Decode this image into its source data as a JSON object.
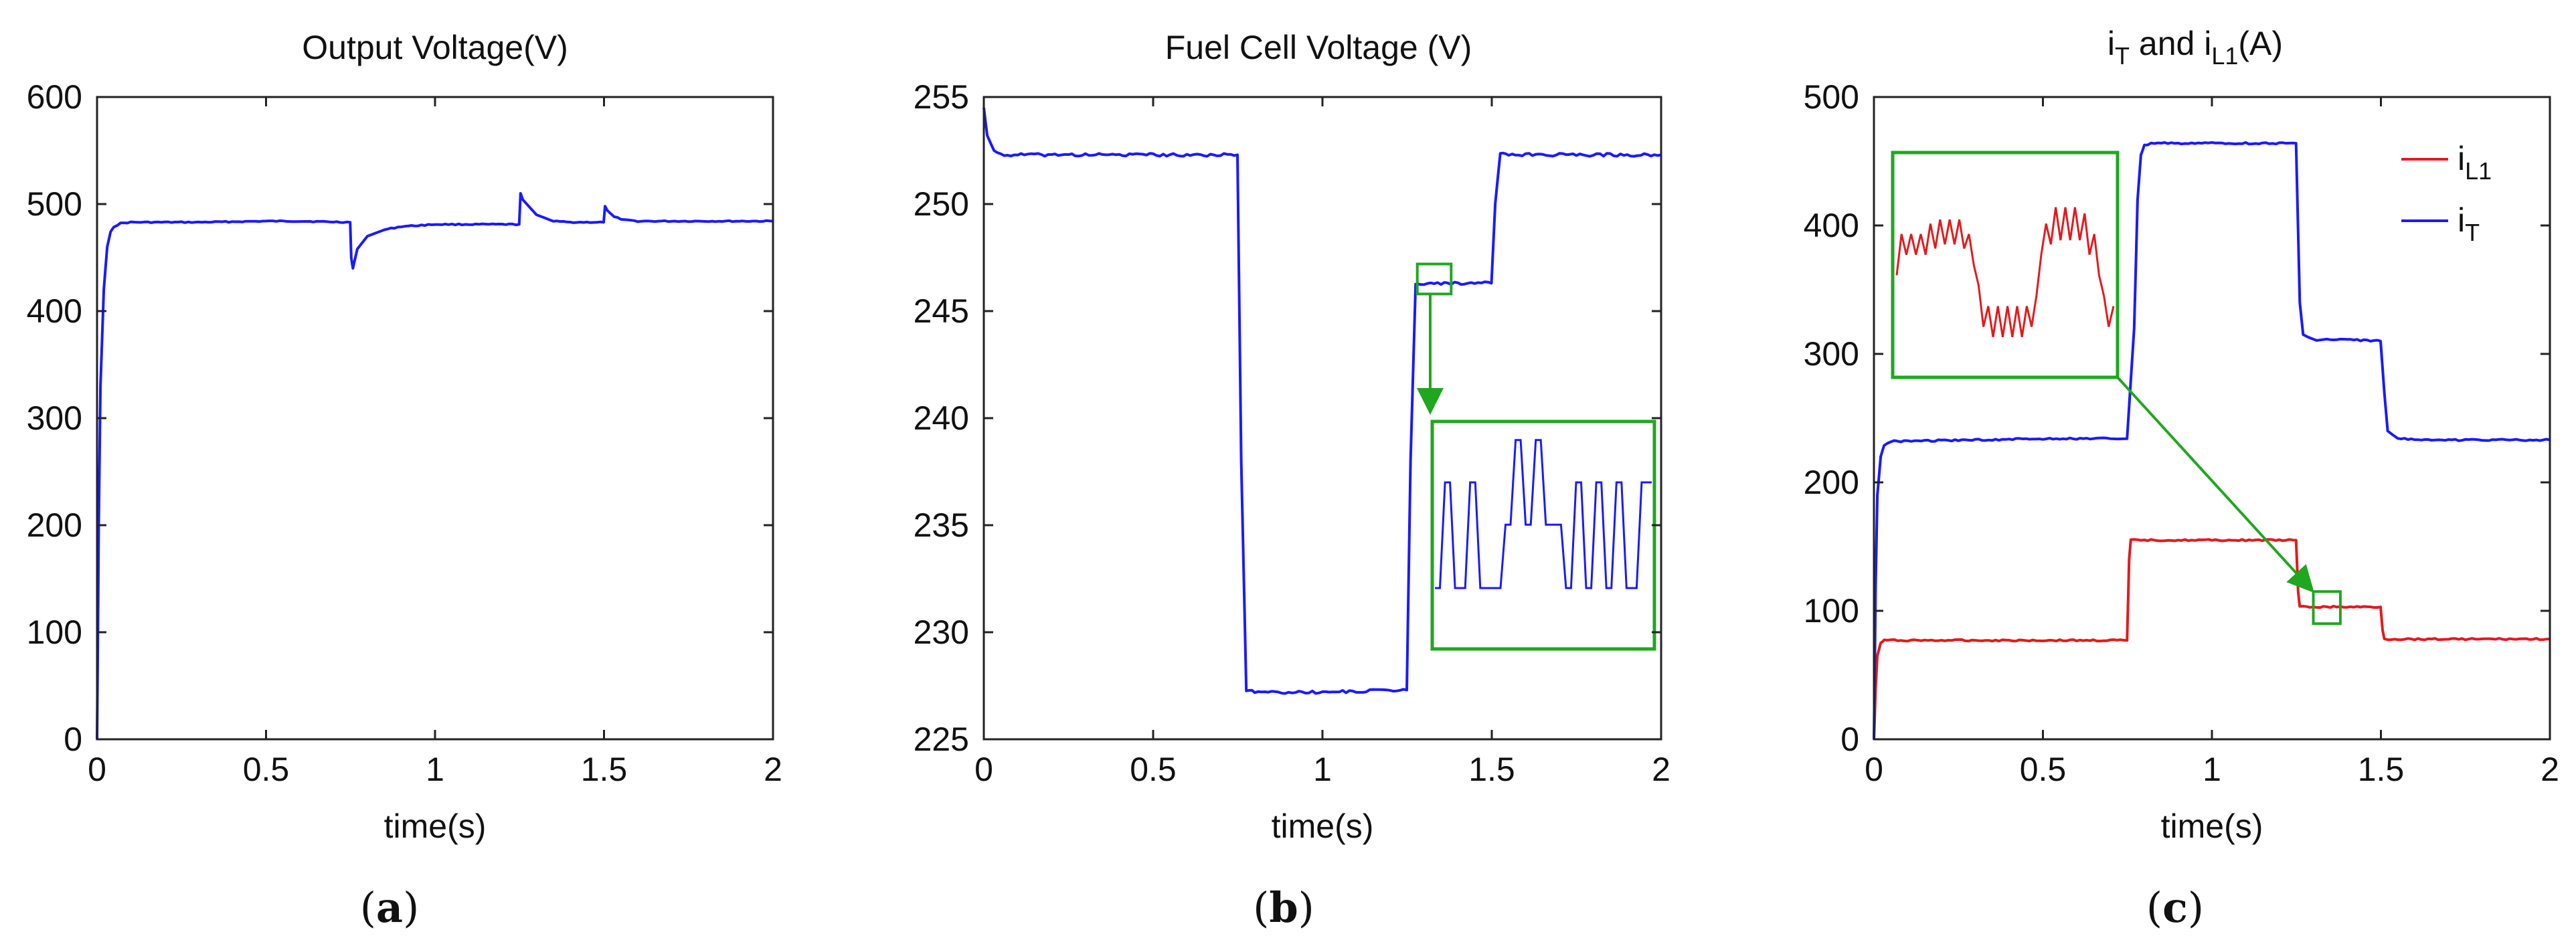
{
  "colors": {
    "blue": "#1a1aff",
    "red": "#e41a1c",
    "green": "#1fa71f",
    "axis": "#222222"
  },
  "chart_data": [
    {
      "id": "a",
      "type": "line",
      "title": "Output Voltage(V)",
      "xlabel": "time(s)",
      "ylabel": "",
      "panel_label": {
        "open": "(",
        "letter": "a",
        "close": ")"
      },
      "xlim": [
        0,
        2
      ],
      "ylim": [
        0,
        600
      ],
      "xticks": [
        0,
        0.5,
        1,
        1.5,
        2
      ],
      "xtick_labels": [
        "0",
        "0.5",
        "1",
        "1.5",
        "2"
      ],
      "yticks": [
        0,
        100,
        200,
        300,
        400,
        500,
        600
      ],
      "ytick_labels": [
        "0",
        "100",
        "200",
        "300",
        "400",
        "500",
        "600"
      ],
      "series": [
        {
          "name": "Output Voltage",
          "color": "#1a1aff",
          "x": [
            0,
            0.005,
            0.01,
            0.02,
            0.03,
            0.04,
            0.05,
            0.07,
            0.1,
            0.3,
            0.5,
            0.6,
            0.749,
            0.752,
            0.757,
            0.77,
            0.8,
            0.85,
            0.9,
            1.0,
            1.1,
            1.249,
            1.253,
            1.26,
            1.28,
            1.3,
            1.35,
            1.4,
            1.499,
            1.503,
            1.51,
            1.53,
            1.56,
            1.6,
            1.8,
            2.0
          ],
          "y": [
            0,
            200,
            330,
            420,
            460,
            474,
            479,
            482,
            483,
            483,
            484,
            484,
            483,
            450,
            440,
            458,
            470,
            476,
            479,
            481,
            481,
            481,
            510,
            504,
            497,
            490,
            484,
            483,
            483,
            498,
            494,
            488,
            485,
            484,
            484,
            484
          ]
        }
      ]
    },
    {
      "id": "b",
      "type": "line",
      "title": "Fuel Cell Voltage (V)",
      "xlabel": "time(s)",
      "ylabel": "",
      "panel_label": {
        "open": "(",
        "letter": "b",
        "close": ")"
      },
      "xlim": [
        0,
        2
      ],
      "ylim": [
        225,
        255
      ],
      "xticks": [
        0,
        0.5,
        1,
        1.5,
        2
      ],
      "xtick_labels": [
        "0",
        "0.5",
        "1",
        "1.5",
        "2"
      ],
      "yticks": [
        225,
        230,
        235,
        240,
        245,
        250,
        255
      ],
      "ytick_labels": [
        "225",
        "230",
        "235",
        "240",
        "245",
        "250",
        "255"
      ],
      "series": [
        {
          "name": "Fuel Cell Voltage",
          "color": "#1a1aff",
          "x": [
            0,
            0.01,
            0.03,
            0.05,
            0.3,
            0.5,
            0.749,
            0.76,
            0.775,
            0.8,
            1.0,
            1.249,
            1.26,
            1.275,
            1.3,
            1.4,
            1.499,
            1.51,
            1.525,
            1.55,
            1.8,
            2.0
          ],
          "y": [
            254.5,
            253.2,
            252.5,
            252.3,
            252.3,
            252.3,
            252.3,
            238,
            227.3,
            227.2,
            227.2,
            227.3,
            238,
            246.3,
            246.3,
            246.3,
            246.3,
            250,
            252.4,
            252.3,
            252.3,
            252.3
          ]
        }
      ],
      "zoom_region": {
        "x": [
          1.28,
          1.38
        ],
        "y": [
          245.8,
          247.2
        ]
      },
      "inset_pattern": [
        0.25,
        0.25,
        0.75,
        0.75,
        0.25,
        0.25,
        0.25,
        0.75,
        0.75,
        0.25,
        0.25,
        0.25,
        0.25,
        0.25,
        0.55,
        0.55,
        0.95,
        0.95,
        0.55,
        0.55,
        0.95,
        0.95,
        0.55,
        0.55,
        0.55,
        0.55,
        0.25,
        0.25,
        0.75,
        0.75,
        0.25,
        0.25,
        0.75,
        0.75,
        0.25,
        0.25,
        0.75,
        0.75,
        0.25,
        0.25,
        0.25,
        0.75,
        0.75,
        0.75
      ]
    },
    {
      "id": "c",
      "type": "line",
      "title": {
        "i1": "i",
        "sub1": "T",
        "mid": " and ",
        "i2": "i",
        "sub2": "L1",
        "unit": "(A)"
      },
      "xlabel": "time(s)",
      "ylabel": "",
      "panel_label": {
        "open": "(",
        "letter": "c",
        "close": ")"
      },
      "xlim": [
        0,
        2
      ],
      "ylim": [
        0,
        500
      ],
      "xticks": [
        0,
        0.5,
        1,
        1.5,
        2
      ],
      "xtick_labels": [
        "0",
        "0.5",
        "1",
        "1.5",
        "2"
      ],
      "yticks": [
        0,
        100,
        200,
        300,
        400,
        500
      ],
      "ytick_labels": [
        "0",
        "100",
        "200",
        "300",
        "400",
        "500"
      ],
      "legend": {
        "position": "top-right",
        "entries": [
          {
            "base": "i",
            "sub": "L1",
            "color": "#e41a1c"
          },
          {
            "base": "i",
            "sub": "T",
            "color": "#1a1aff"
          }
        ]
      },
      "series": [
        {
          "name": "iL1",
          "color": "#e41a1c",
          "x": [
            0,
            0.005,
            0.01,
            0.02,
            0.03,
            0.05,
            0.3,
            0.5,
            0.749,
            0.755,
            0.76,
            1.0,
            1.249,
            1.255,
            1.26,
            1.4,
            1.499,
            1.505,
            1.51,
            1.7,
            2.0
          ],
          "y": [
            0,
            40,
            65,
            75,
            77,
            77,
            77,
            77,
            77,
            140,
            155,
            155,
            155,
            115,
            103,
            103,
            103,
            85,
            78,
            78,
            78
          ]
        },
        {
          "name": "iT",
          "color": "#1a1aff",
          "x": [
            0,
            0.005,
            0.01,
            0.02,
            0.03,
            0.05,
            0.3,
            0.5,
            0.749,
            0.77,
            0.78,
            0.79,
            0.8,
            0.82,
            1.0,
            1.249,
            1.26,
            1.27,
            1.3,
            1.4,
            1.499,
            1.51,
            1.52,
            1.55,
            1.7,
            2.0
          ],
          "y": [
            0,
            120,
            190,
            220,
            229,
            232,
            233,
            234,
            234,
            320,
            420,
            455,
            462,
            464,
            464,
            464,
            340,
            315,
            311,
            311,
            310,
            270,
            240,
            234,
            233,
            233
          ]
        }
      ],
      "zoom_region": {
        "x": [
          1.3,
          1.38
        ],
        "y": [
          90,
          115
        ]
      },
      "inset_pattern": [
        0.45,
        0.65,
        0.55,
        0.65,
        0.55,
        0.65,
        0.55,
        0.7,
        0.58,
        0.72,
        0.6,
        0.72,
        0.6,
        0.72,
        0.58,
        0.65,
        0.5,
        0.4,
        0.2,
        0.3,
        0.15,
        0.3,
        0.15,
        0.3,
        0.15,
        0.3,
        0.15,
        0.3,
        0.2,
        0.35,
        0.55,
        0.7,
        0.6,
        0.78,
        0.62,
        0.78,
        0.62,
        0.78,
        0.62,
        0.75,
        0.55,
        0.65,
        0.45,
        0.35,
        0.2,
        0.3
      ]
    }
  ]
}
